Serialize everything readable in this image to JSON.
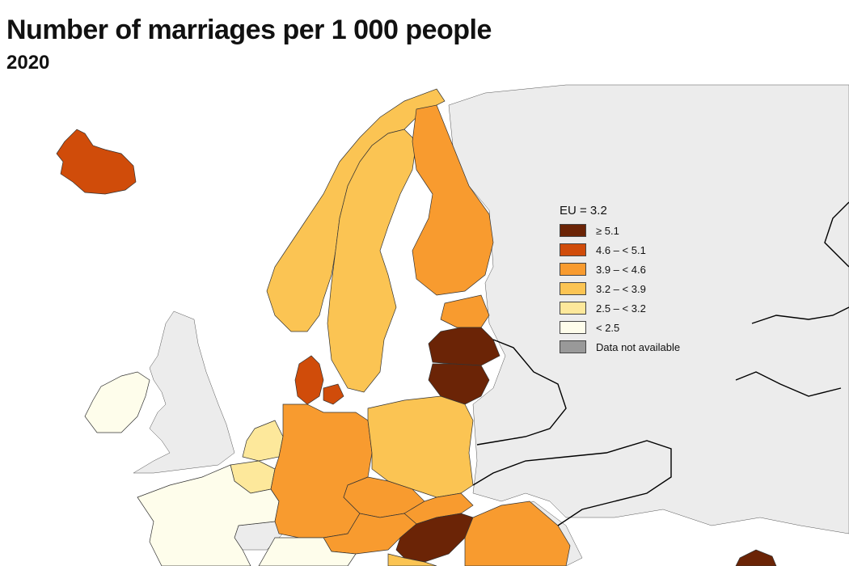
{
  "header": {
    "title": "Number of marriages per 1 000 people",
    "subtitle": "2020"
  },
  "legend": {
    "title": "EU = 3.2",
    "items": [
      {
        "label": "≥ 5.1",
        "color": "#6b2406"
      },
      {
        "label": "4.6 – < 5.1",
        "color": "#d04c0a"
      },
      {
        "label": "3.9 – < 4.6",
        "color": "#f89b2f"
      },
      {
        "label": "3.2 – < 3.9",
        "color": "#fbc453"
      },
      {
        "label": "2.5 – < 3.2",
        "color": "#fde89b"
      },
      {
        "label": "< 2.5",
        "color": "#fefdeb"
      },
      {
        "label": "Data not available",
        "color": "#999999"
      }
    ]
  },
  "colors": {
    "sea": "#ffffff",
    "non_reporting_land": "#ececec"
  }
}
